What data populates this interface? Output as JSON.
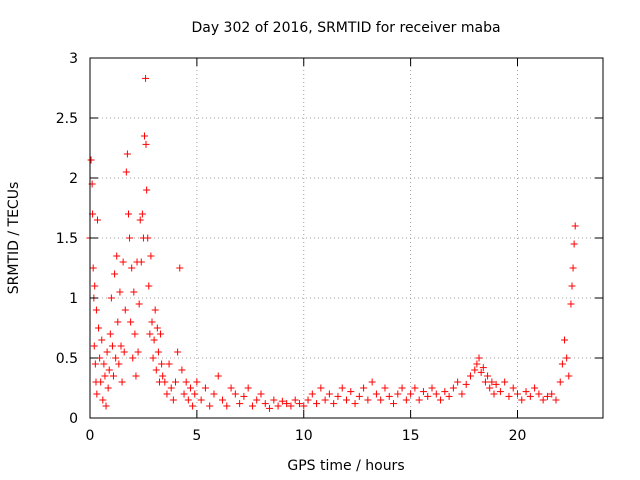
{
  "chart_data": {
    "type": "scatter",
    "title": "Day 302 of 2016, SRMTID for receiver maba",
    "xlabel": "GPS time / hours",
    "ylabel": "SRMTID / TECUs",
    "xlim": [
      0,
      24
    ],
    "ylim": [
      0,
      3
    ],
    "xticks": [
      0,
      5,
      10,
      15,
      20
    ],
    "yticks": [
      0,
      0.5,
      1,
      1.5,
      2,
      2.5,
      3
    ],
    "xtick_labels": [
      "0",
      "5",
      "10",
      "15",
      "20"
    ],
    "ytick_labels": [
      "0",
      "0.5",
      "1",
      "1.5",
      "2",
      "2.5",
      "3"
    ],
    "grid": true,
    "marker": "plus",
    "color": "#ff0000",
    "series": [
      {
        "x": [
          0.0,
          0.05,
          0.1,
          0.12,
          0.15,
          0.18,
          0.2,
          0.22,
          0.25,
          0.28,
          0.3,
          0.32,
          0.35,
          0.4,
          0.45,
          0.5,
          0.55,
          0.6,
          0.65,
          0.7,
          0.75,
          0.8,
          0.85,
          0.9,
          0.95,
          1.0,
          1.05,
          1.1,
          1.15,
          1.2,
          1.25,
          1.3,
          1.35,
          1.4,
          1.45,
          1.5,
          1.55,
          1.6,
          1.65,
          1.7,
          1.75,
          1.8,
          1.85,
          1.9,
          1.95,
          2.0,
          2.05,
          2.1,
          2.15,
          2.2,
          2.25,
          2.3,
          2.35,
          2.4,
          2.45,
          2.5,
          2.55,
          2.6,
          2.62,
          2.65,
          2.7,
          2.75,
          2.8,
          2.85,
          2.9,
          2.95,
          3.0,
          3.05,
          3.1,
          3.15,
          3.2,
          3.25,
          3.3,
          3.35,
          3.4,
          3.5,
          3.6,
          3.7,
          3.8,
          3.9,
          4.0,
          4.1,
          4.2,
          4.3,
          4.4,
          4.5,
          4.6,
          4.7,
          4.8,
          4.9,
          5.0,
          5.2,
          5.4,
          5.6,
          5.8,
          6.0,
          6.2,
          6.4,
          6.6,
          6.8,
          7.0,
          7.2,
          7.4,
          7.6,
          7.8,
          8.0,
          8.2,
          8.4,
          8.6,
          8.8,
          9.0,
          9.2,
          9.4,
          9.6,
          9.8,
          10.0,
          10.2,
          10.4,
          10.6,
          10.8,
          11.0,
          11.2,
          11.4,
          11.6,
          11.8,
          12.0,
          12.2,
          12.4,
          12.6,
          12.8,
          13.0,
          13.2,
          13.4,
          13.6,
          13.8,
          14.0,
          14.2,
          14.4,
          14.6,
          14.8,
          15.0,
          15.2,
          15.4,
          15.6,
          15.8,
          16.0,
          16.2,
          16.4,
          16.6,
          16.8,
          17.0,
          17.2,
          17.4,
          17.6,
          17.8,
          18.0,
          18.1,
          18.2,
          18.3,
          18.4,
          18.5,
          18.6,
          18.7,
          18.8,
          18.9,
          19.0,
          19.2,
          19.4,
          19.6,
          19.8,
          20.0,
          20.2,
          20.4,
          20.6,
          20.8,
          21.0,
          21.2,
          21.4,
          21.6,
          21.8,
          22.0,
          22.1,
          22.2,
          22.3,
          22.4,
          22.5,
          22.55,
          22.6,
          22.65,
          22.7
        ],
        "y": [
          1.5,
          2.15,
          1.95,
          1.7,
          1.25,
          1.0,
          0.6,
          1.1,
          0.45,
          0.3,
          0.9,
          0.2,
          1.65,
          0.75,
          0.5,
          0.3,
          0.65,
          0.15,
          0.45,
          0.35,
          0.1,
          0.55,
          0.25,
          0.4,
          0.7,
          1.0,
          0.6,
          0.35,
          1.2,
          0.5,
          1.35,
          0.8,
          0.45,
          1.05,
          0.6,
          0.3,
          1.3,
          0.55,
          0.9,
          2.05,
          2.2,
          1.7,
          1.5,
          0.8,
          1.25,
          0.5,
          1.05,
          0.7,
          0.35,
          1.3,
          0.55,
          0.95,
          1.65,
          1.3,
          1.7,
          1.5,
          2.35,
          2.83,
          2.28,
          1.9,
          1.5,
          1.1,
          0.7,
          1.35,
          0.8,
          0.5,
          0.65,
          0.9,
          0.4,
          0.75,
          0.55,
          0.3,
          0.7,
          0.45,
          0.35,
          0.3,
          0.2,
          0.45,
          0.25,
          0.15,
          0.3,
          0.55,
          1.25,
          0.4,
          0.2,
          0.3,
          0.15,
          0.25,
          0.1,
          0.2,
          0.3,
          0.15,
          0.25,
          0.1,
          0.2,
          0.35,
          0.15,
          0.1,
          0.25,
          0.2,
          0.12,
          0.18,
          0.25,
          0.1,
          0.15,
          0.2,
          0.12,
          0.08,
          0.15,
          0.1,
          0.14,
          0.12,
          0.1,
          0.15,
          0.12,
          0.1,
          0.15,
          0.2,
          0.12,
          0.25,
          0.15,
          0.2,
          0.12,
          0.18,
          0.25,
          0.15,
          0.22,
          0.12,
          0.18,
          0.25,
          0.15,
          0.3,
          0.2,
          0.15,
          0.25,
          0.18,
          0.12,
          0.2,
          0.25,
          0.15,
          0.2,
          0.25,
          0.15,
          0.22,
          0.18,
          0.25,
          0.2,
          0.15,
          0.22,
          0.18,
          0.25,
          0.3,
          0.2,
          0.28,
          0.35,
          0.4,
          0.45,
          0.5,
          0.38,
          0.42,
          0.3,
          0.35,
          0.25,
          0.3,
          0.2,
          0.28,
          0.22,
          0.3,
          0.18,
          0.25,
          0.2,
          0.15,
          0.22,
          0.18,
          0.25,
          0.2,
          0.15,
          0.18,
          0.2,
          0.15,
          0.3,
          0.45,
          0.65,
          0.5,
          0.35,
          0.95,
          1.1,
          1.25,
          1.45,
          1.6
        ]
      }
    ]
  }
}
